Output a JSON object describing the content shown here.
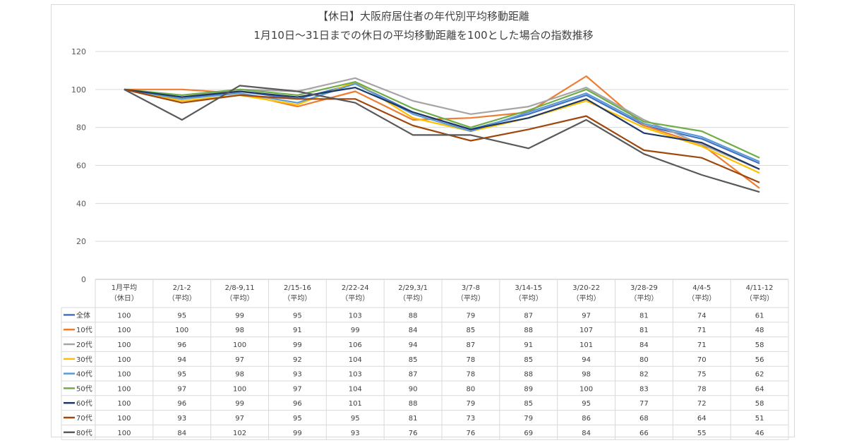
{
  "chart_data": {
    "type": "line",
    "title": "【休日】大阪府居住者の年代別平均移動距離",
    "subtitle": "1月10日～31日までの休日の平均移動距離を100とした場合の指数推移",
    "ylim": [
      0,
      120
    ],
    "yticks": [
      0,
      20,
      40,
      60,
      80,
      100,
      120
    ],
    "grid": true,
    "legend_placement": "data-table",
    "categories": [
      {
        "line1": "1月平均",
        "line2": "（休日）"
      },
      {
        "line1": "2/1-2",
        "line2": "（平均）"
      },
      {
        "line1": "2/8-9,11",
        "line2": "（平均）"
      },
      {
        "line1": "2/15-16",
        "line2": "（平均）"
      },
      {
        "line1": "2/22-24",
        "line2": "（平均）"
      },
      {
        "line1": "2/29,3/1",
        "line2": "（平均）"
      },
      {
        "line1": "3/7-8",
        "line2": "（平均）"
      },
      {
        "line1": "3/14-15",
        "line2": "（平均）"
      },
      {
        "line1": "3/20-22",
        "line2": "（平均）"
      },
      {
        "line1": "3/28-29",
        "line2": "（平均）"
      },
      {
        "line1": "4/4-5",
        "line2": "（平均）"
      },
      {
        "line1": "4/11-12",
        "line2": "（平均）"
      }
    ],
    "series": [
      {
        "name": "全体",
        "color": "#4472C4",
        "values": [
          100,
          95,
          99,
          95,
          103,
          88,
          79,
          87,
          97,
          81,
          74,
          61
        ]
      },
      {
        "name": "10代",
        "color": "#ED7D31",
        "values": [
          100,
          100,
          98,
          91,
          99,
          84,
          85,
          88,
          107,
          81,
          71,
          48
        ]
      },
      {
        "name": "20代",
        "color": "#A5A5A5",
        "values": [
          100,
          96,
          100,
          99,
          106,
          94,
          87,
          91,
          101,
          84,
          71,
          58
        ]
      },
      {
        "name": "30代",
        "color": "#FFC000",
        "values": [
          100,
          94,
          97,
          92,
          104,
          85,
          78,
          85,
          94,
          80,
          70,
          56
        ]
      },
      {
        "name": "40代",
        "color": "#5B9BD5",
        "values": [
          100,
          95,
          98,
          93,
          103,
          87,
          78,
          88,
          98,
          82,
          75,
          62
        ]
      },
      {
        "name": "50代",
        "color": "#70AD47",
        "values": [
          100,
          97,
          100,
          97,
          104,
          90,
          80,
          89,
          100,
          83,
          78,
          64
        ]
      },
      {
        "name": "60代",
        "color": "#1F3864",
        "values": [
          100,
          96,
          99,
          96,
          101,
          88,
          79,
          85,
          95,
          77,
          72,
          58
        ]
      },
      {
        "name": "70代",
        "color": "#9E480E",
        "values": [
          100,
          93,
          97,
          95,
          95,
          81,
          73,
          79,
          86,
          68,
          64,
          51
        ]
      },
      {
        "name": "80代",
        "color": "#595959",
        "values": [
          100,
          84,
          102,
          99,
          93,
          76,
          76,
          69,
          84,
          66,
          55,
          46
        ]
      }
    ]
  }
}
